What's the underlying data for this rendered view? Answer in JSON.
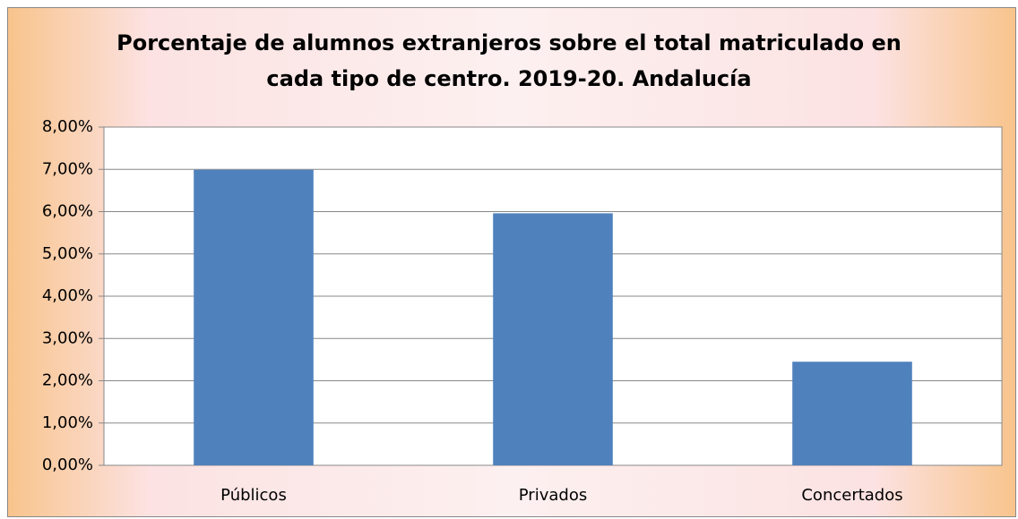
{
  "chart_data": {
    "type": "bar",
    "title": "Porcentaje de alumnos extranjeros sobre el total matriculado en cada tipo de centro. 2019-20. Andalucía",
    "categories": [
      "Públicos",
      "Privados",
      "Concertados"
    ],
    "values": [
      6.99,
      5.96,
      2.45
    ],
    "color": "#4f81bd",
    "ylim": [
      0,
      8
    ],
    "yticks": [
      {
        "value": 0,
        "label": "0,00%"
      },
      {
        "value": 1,
        "label": "1,00%"
      },
      {
        "value": 2,
        "label": "2,00%"
      },
      {
        "value": 3,
        "label": "3,00%"
      },
      {
        "value": 4,
        "label": "4,00%"
      },
      {
        "value": 5,
        "label": "5,00%"
      },
      {
        "value": 6,
        "label": "6,00%"
      },
      {
        "value": 7,
        "label": "7,00%"
      },
      {
        "value": 8,
        "label": "8,00%"
      }
    ],
    "grid": true
  }
}
